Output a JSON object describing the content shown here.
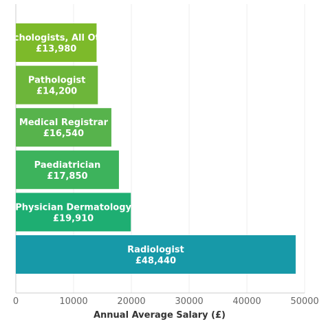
{
  "chart_data": {
    "type": "bar",
    "orientation": "horizontal",
    "categories": [
      "Psychologists, All Other",
      "Pathologist",
      "Medical Registrar",
      "Paediatrician",
      "Physician Dermatology",
      "Radiologist"
    ],
    "values": [
      13980,
      14200,
      16540,
      17850,
      19910,
      48440
    ],
    "value_labels": [
      "£13,980",
      "£14,200",
      "£16,540",
      "£17,850",
      "£19,910",
      "£48,440"
    ],
    "bar_colors": [
      "#7dba2a",
      "#6db63a",
      "#57b34c",
      "#3db35c",
      "#1eae72",
      "#1799a8"
    ],
    "xlabel": "Annual Average Salary (£)",
    "xlim": [
      0,
      50000
    ],
    "xticks": [
      0,
      10000,
      20000,
      30000,
      40000,
      50000
    ],
    "xtick_labels": [
      "0",
      "10000",
      "20000",
      "30000",
      "40000",
      "50000"
    ],
    "grid": true
  }
}
